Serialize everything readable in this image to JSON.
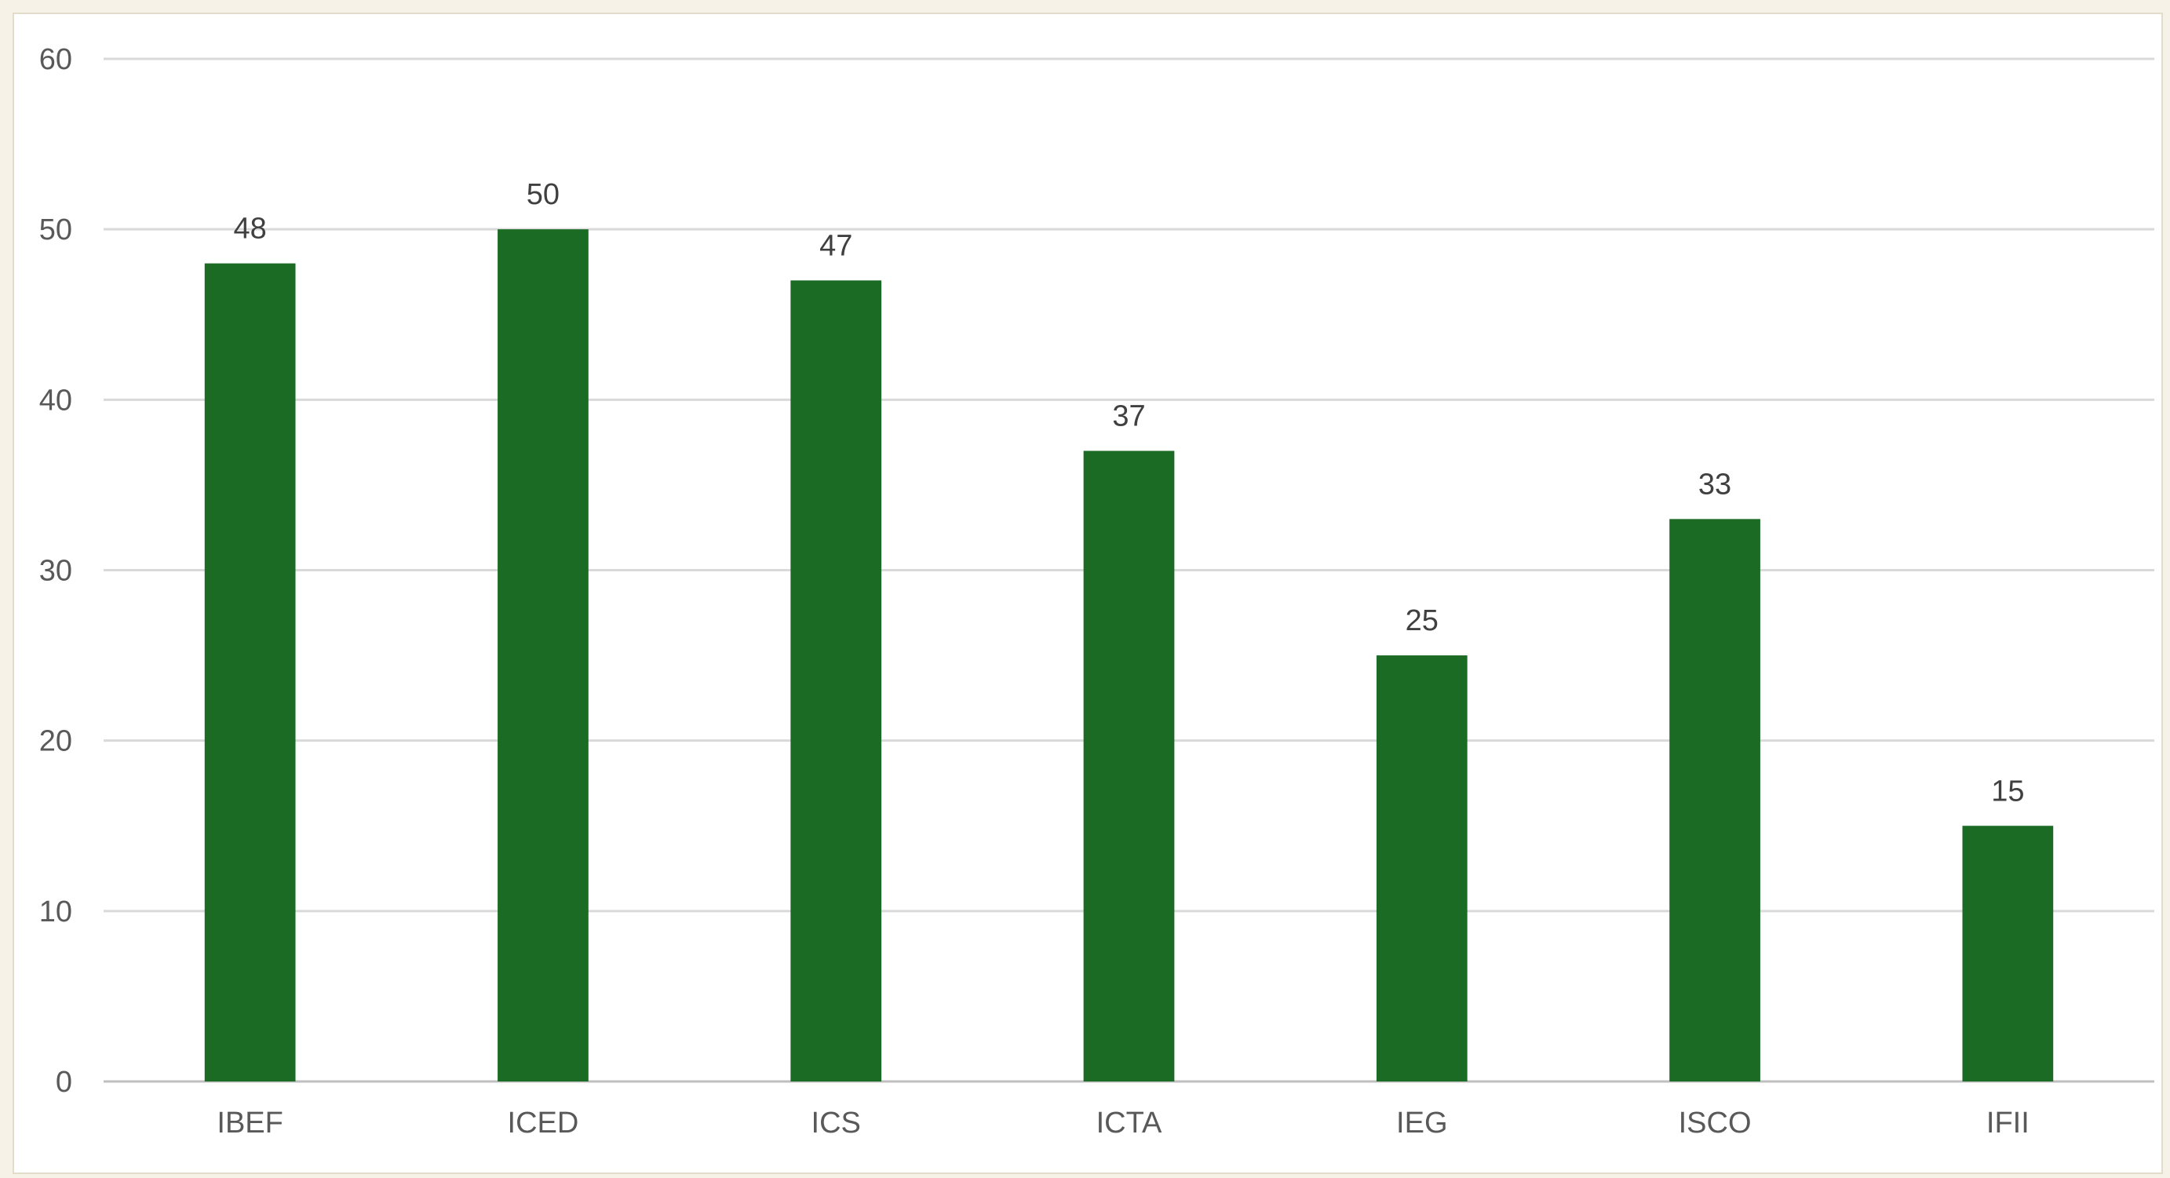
{
  "chart_data": {
    "type": "bar",
    "categories": [
      "IBEF",
      "ICED",
      "ICS",
      "ICTA",
      "IEG",
      "ISCO",
      "IFII"
    ],
    "values": [
      48,
      50,
      47,
      37,
      25,
      33,
      15
    ],
    "title": "",
    "xlabel": "",
    "ylabel": "",
    "ylim": [
      0,
      60
    ],
    "yticks": [
      0,
      10,
      20,
      30,
      40,
      50,
      60
    ],
    "data_labels": true,
    "grid": "horizontal",
    "legend": "none",
    "bar_color": "#1b6b25"
  }
}
